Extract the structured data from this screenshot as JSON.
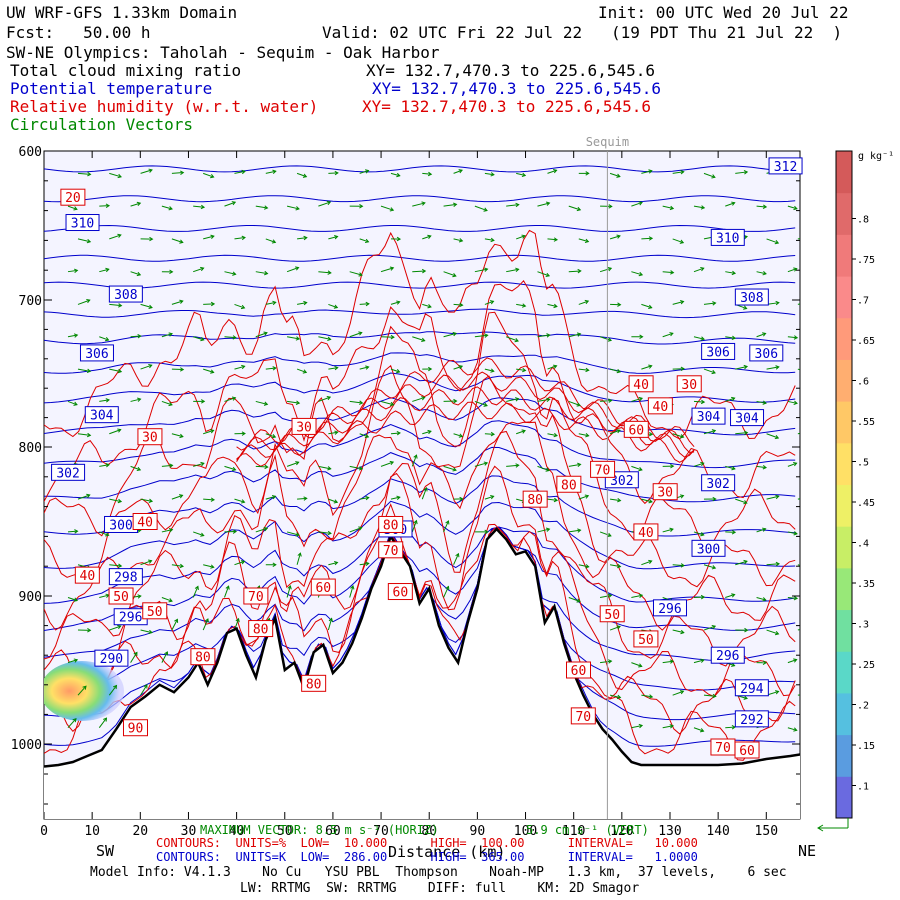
{
  "header": {
    "model": "UW WRF-GFS 1.33km Domain",
    "init": "Init: 00 UTC Wed 20 Jul 22",
    "fcst": "Fcst:   50.00 h",
    "valid": "Valid: 02 UTC Fri 22 Jul 22   (19 PDT Thu 21 Jul 22  )",
    "cross_section": "SW-NE Olympics: Taholah - Sequim - Oak Harbor",
    "fields": [
      {
        "name": "Total cloud mixing ratio",
        "xy": "XY= 132.7,470.3 to 225.6,545.6",
        "color": "#000000"
      },
      {
        "name": "Potential temperature",
        "xy": "XY= 132.7,470.3 to 225.6,545.6",
        "color": "#0000cc"
      },
      {
        "name": "Relative humidity (w.r.t. water)",
        "xy": "XY= 132.7,470.3 to 225.6,545.6",
        "color": "#dd0000"
      },
      {
        "name": "Circulation Vectors",
        "xy": "",
        "color": "#008800"
      }
    ]
  },
  "chart_data": {
    "type": "cross-section",
    "xlabel": "Distance (km)",
    "ylabel": "Pressure (hPa)",
    "xlim": [
      0,
      157
    ],
    "ylim": [
      1050,
      600
    ],
    "x_ticks": [
      0,
      10,
      20,
      30,
      40,
      50,
      60,
      70,
      80,
      90,
      100,
      110,
      120,
      130,
      140,
      150
    ],
    "y_ticks": [
      {
        "p": 600,
        "label": "600"
      },
      {
        "p": 700,
        "label": "700"
      },
      {
        "p": 800,
        "label": "800"
      },
      {
        "p": 900,
        "label": "900"
      },
      {
        "p": 1000,
        "label": "1000"
      }
    ],
    "left_end": "SW",
    "right_end": "NE",
    "location_marker": {
      "label": "Sequim",
      "x": 117
    },
    "terrain_pressure": [
      [
        0,
        1015
      ],
      [
        3,
        1014
      ],
      [
        6,
        1012
      ],
      [
        9,
        1008
      ],
      [
        12,
        1004
      ],
      [
        15,
        990
      ],
      [
        18,
        975
      ],
      [
        21,
        968
      ],
      [
        24,
        960
      ],
      [
        27,
        965
      ],
      [
        30,
        955
      ],
      [
        32,
        945
      ],
      [
        34,
        960
      ],
      [
        36,
        945
      ],
      [
        38,
        925
      ],
      [
        40,
        922
      ],
      [
        42,
        940
      ],
      [
        44,
        955
      ],
      [
        46,
        930
      ],
      [
        48,
        915
      ],
      [
        50,
        950
      ],
      [
        52,
        945
      ],
      [
        54,
        962
      ],
      [
        56,
        938
      ],
      [
        58,
        933
      ],
      [
        60,
        952
      ],
      [
        62,
        945
      ],
      [
        64,
        932
      ],
      [
        66,
        915
      ],
      [
        68,
        895
      ],
      [
        70,
        880
      ],
      [
        72,
        860
      ],
      [
        74,
        870
      ],
      [
        76,
        880
      ],
      [
        78,
        905
      ],
      [
        80,
        895
      ],
      [
        82,
        920
      ],
      [
        84,
        935
      ],
      [
        86,
        945
      ],
      [
        88,
        918
      ],
      [
        90,
        895
      ],
      [
        92,
        862
      ],
      [
        94,
        855
      ],
      [
        96,
        862
      ],
      [
        98,
        872
      ],
      [
        100,
        870
      ],
      [
        102,
        880
      ],
      [
        104,
        918
      ],
      [
        106,
        907
      ],
      [
        108,
        932
      ],
      [
        110,
        952
      ],
      [
        112,
        967
      ],
      [
        114,
        980
      ],
      [
        116,
        990
      ],
      [
        118,
        997
      ],
      [
        120,
        1005
      ],
      [
        122,
        1012
      ],
      [
        124,
        1014
      ],
      [
        130,
        1014
      ],
      [
        135,
        1014
      ],
      [
        140,
        1014
      ],
      [
        145,
        1013
      ],
      [
        150,
        1010
      ],
      [
        155,
        1008
      ],
      [
        157,
        1007
      ]
    ],
    "theta_contours": {
      "units": "K",
      "low": "286.00",
      "high": "365.00",
      "interval": "1.0000",
      "labels": [
        {
          "value": "312",
          "x": 154,
          "p": 610
        },
        {
          "value": "310",
          "x": 8,
          "p": 648
        },
        {
          "value": "310",
          "x": 142,
          "p": 658
        },
        {
          "value": "308",
          "x": 17,
          "p": 696
        },
        {
          "value": "308",
          "x": 147,
          "p": 698
        },
        {
          "value": "306",
          "x": 11,
          "p": 736
        },
        {
          "value": "306",
          "x": 140,
          "p": 735
        },
        {
          "value": "306",
          "x": 150,
          "p": 736
        },
        {
          "value": "304",
          "x": 12,
          "p": 778
        },
        {
          "value": "304",
          "x": 138,
          "p": 779
        },
        {
          "value": "304",
          "x": 146,
          "p": 780
        },
        {
          "value": "302",
          "x": 5,
          "p": 817
        },
        {
          "value": "302",
          "x": 120,
          "p": 822
        },
        {
          "value": "302",
          "x": 140,
          "p": 824
        },
        {
          "value": "300",
          "x": 16,
          "p": 852
        },
        {
          "value": "300",
          "x": 73,
          "p": 855
        },
        {
          "value": "300",
          "x": 138,
          "p": 868
        },
        {
          "value": "298",
          "x": 17,
          "p": 887
        },
        {
          "value": "296",
          "x": 18,
          "p": 914
        },
        {
          "value": "296",
          "x": 130,
          "p": 908
        },
        {
          "value": "296",
          "x": 142,
          "p": 940
        },
        {
          "value": "294",
          "x": 147,
          "p": 962
        },
        {
          "value": "292",
          "x": 147,
          "p": 983
        },
        {
          "value": "290",
          "x": 14,
          "p": 942
        }
      ]
    },
    "rh_contours": {
      "units": "%",
      "low": "10.000",
      "high": "100.00",
      "interval": "10.000",
      "labels": [
        {
          "value": "20",
          "x": 6,
          "p": 631
        },
        {
          "value": "30",
          "x": 22,
          "p": 793
        },
        {
          "value": "30",
          "x": 54,
          "p": 786
        },
        {
          "value": "30",
          "x": 134,
          "p": 757
        },
        {
          "value": "30",
          "x": 129,
          "p": 830
        },
        {
          "value": "40",
          "x": 124,
          "p": 757
        },
        {
          "value": "40",
          "x": 128,
          "p": 772
        },
        {
          "value": "40",
          "x": 21,
          "p": 850
        },
        {
          "value": "40",
          "x": 9,
          "p": 886
        },
        {
          "value": "40",
          "x": 125,
          "p": 857
        },
        {
          "value": "50",
          "x": 16,
          "p": 900
        },
        {
          "value": "50",
          "x": 23,
          "p": 910
        },
        {
          "value": "50",
          "x": 118,
          "p": 912
        },
        {
          "value": "50",
          "x": 125,
          "p": 929
        },
        {
          "value": "60",
          "x": 123,
          "p": 788
        },
        {
          "value": "60",
          "x": 58,
          "p": 894
        },
        {
          "value": "60",
          "x": 74,
          "p": 897
        },
        {
          "value": "60",
          "x": 111,
          "p": 950
        },
        {
          "value": "60",
          "x": 146,
          "p": 1004
        },
        {
          "value": "70",
          "x": 116,
          "p": 815
        },
        {
          "value": "70",
          "x": 44,
          "p": 900
        },
        {
          "value": "70",
          "x": 72,
          "p": 869
        },
        {
          "value": "70",
          "x": 112,
          "p": 981
        },
        {
          "value": "70",
          "x": 141,
          "p": 1002
        },
        {
          "value": "80",
          "x": 102,
          "p": 835
        },
        {
          "value": "80",
          "x": 109,
          "p": 825
        },
        {
          "value": "80",
          "x": 72,
          "p": 852
        },
        {
          "value": "80",
          "x": 33,
          "p": 941
        },
        {
          "value": "80",
          "x": 45,
          "p": 922
        },
        {
          "value": "80",
          "x": 56,
          "p": 959
        },
        {
          "value": "90",
          "x": 19,
          "p": 989
        }
      ]
    },
    "cloud_colorbar": {
      "units": "g kg⁻¹",
      "ticks": [
        ".1",
        ".15",
        ".2",
        ".25",
        ".3",
        ".35",
        ".4",
        ".45",
        ".5",
        ".55",
        ".6",
        ".65",
        ".7",
        ".75",
        ".8"
      ]
    },
    "vector_ref": {
      "horiz": "MAXIMUM VECTOR: 8.5 m s⁻¹ (HORIZ)",
      "vert": "5.9 cm s⁻¹ (VERT)"
    }
  },
  "footer": {
    "contours_rh": "CONTOURS:  UNITS=%  LOW=  10.000      HIGH=  100.00      INTERVAL=   10.000",
    "contours_theta": "CONTOURS:  UNITS=K  LOW=  286.00      HIGH=  365.00      INTERVAL=   1.0000",
    "model_info": "Model Info: V4.1.3    No Cu   YSU PBL  Thompson    Noah-MP   1.3 km,  37 levels,    6 sec",
    "physics": "LW: RRTMG  SW: RRTMG    DIFF: full    KM: 2D Smagor"
  },
  "colors": {
    "theta": "#0000cc",
    "rh": "#dd0000",
    "vectors": "#008800",
    "terrain": "#000000",
    "plot_bg": "#f4f4ff"
  }
}
